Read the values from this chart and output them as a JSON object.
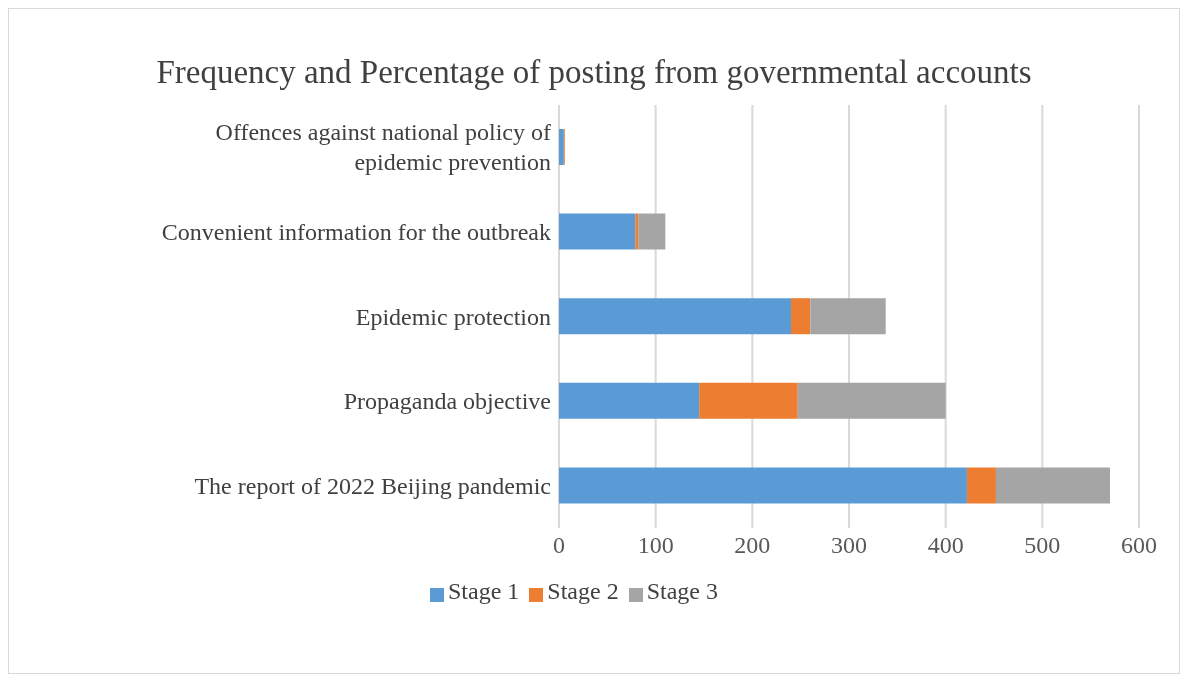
{
  "chart_data": {
    "type": "bar",
    "title": "Frequency and Percentage of posting from governmental accounts",
    "orientation": "horizontal",
    "stacked": true,
    "categories": [
      "Offences against national policy of epidemic prevention",
      "Convenient information for the outbreak",
      "Epidemic protection",
      "Propaganda objective",
      "The report of 2022 Beijing pandemic"
    ],
    "series": [
      {
        "name": "Stage 1",
        "color": "#5b9bd5",
        "values": [
          5,
          79,
          240,
          145,
          422
        ]
      },
      {
        "name": "Stage 2",
        "color": "#ed7d31",
        "values": [
          1,
          3,
          20,
          102,
          30
        ]
      },
      {
        "name": "Stage 3",
        "color": "#a5a5a5",
        "values": [
          0,
          28,
          78,
          153,
          118
        ]
      }
    ],
    "xlim": [
      0,
      600
    ],
    "xticks": [
      0,
      100,
      200,
      300,
      400,
      500,
      600
    ],
    "grid": "x",
    "legend": "bottom"
  }
}
